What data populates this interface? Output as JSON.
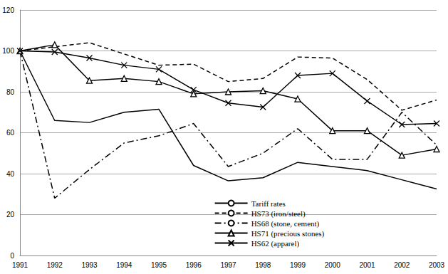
{
  "chart_data": {
    "type": "line",
    "categories": [
      "1991",
      "1992",
      "1993",
      "1994",
      "1995",
      "1996",
      "1997",
      "1998",
      "1999",
      "2000",
      "2001",
      "2002",
      "2003"
    ],
    "series": [
      {
        "name": "Tariff rates",
        "color": "#000000",
        "line_style": "solid",
        "marker": "none",
        "values": [
          100,
          66,
          65,
          70,
          71.5,
          44,
          36.5,
          38,
          45.5,
          43.5,
          41.5,
          37,
          32.5
        ]
      },
      {
        "name": "HS73 (iron/steel)",
        "color": "#000000",
        "line_style": "dashed",
        "marker": "none",
        "values": [
          100,
          102,
          104,
          98.5,
          93,
          93.5,
          85,
          86.5,
          97,
          96.5,
          86,
          71,
          76
        ]
      },
      {
        "name": "HS68 (stone, cement)",
        "color": "#000000",
        "line_style": "dashdot",
        "marker": "none",
        "values": [
          100,
          28,
          42,
          55,
          58.5,
          64.5,
          43.5,
          50,
          62,
          47,
          47,
          70,
          54
        ]
      },
      {
        "name": "HS71 (precious stones)",
        "color": "#000000",
        "line_style": "solid",
        "marker": "triangle",
        "values": [
          100,
          103,
          85.5,
          86.5,
          85,
          79,
          80,
          80.5,
          76.5,
          61,
          61,
          49,
          52
        ]
      },
      {
        "name": "HS62 (apparel)",
        "color": "#000000",
        "line_style": "solid",
        "marker": "x",
        "values": [
          100,
          99.5,
          96.5,
          93,
          91,
          81,
          74.5,
          72.5,
          88,
          89,
          75.5,
          64,
          64.5
        ]
      }
    ],
    "ylim": [
      0,
      120
    ],
    "yticks": [
      0,
      20,
      40,
      60,
      80,
      100,
      120
    ],
    "grid": true,
    "legend": "lower center"
  }
}
